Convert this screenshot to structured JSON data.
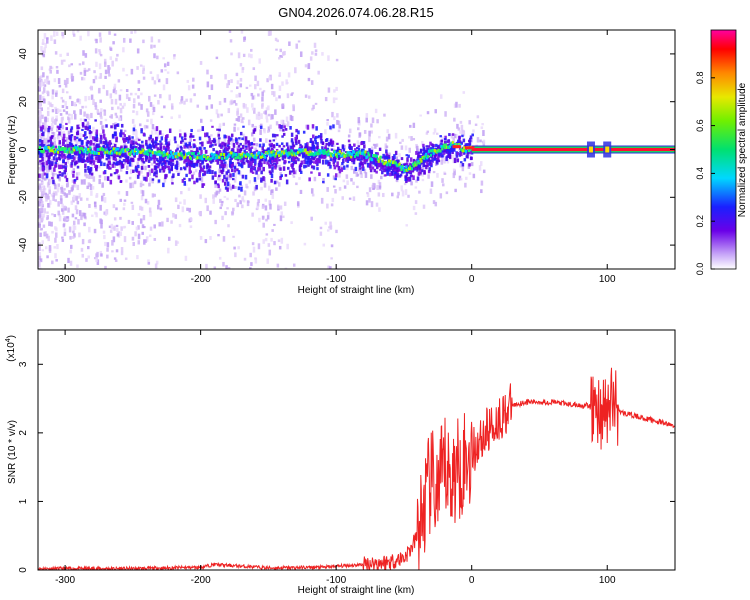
{
  "figure": {
    "title": "GN04.2026.074.06.28.R15"
  },
  "chart_data": [
    {
      "type": "heatmap",
      "xlabel": "Height of straight line (km)",
      "ylabel": "Frequency (Hz)",
      "xlim": [
        -320,
        150
      ],
      "ylim": [
        -50,
        50
      ],
      "xticks": [
        -300,
        -200,
        -100,
        0,
        100
      ],
      "yticks": [
        -40,
        -20,
        0,
        20,
        40
      ],
      "colorbar": {
        "label": "Normalized spectral amplitude",
        "range": [
          0,
          1
        ],
        "ticks": [
          0.0,
          0.2,
          0.4,
          0.6,
          0.8
        ],
        "tick_labels": [
          "0.0",
          "0.2",
          "0.4",
          "0.6",
          "0.8"
        ]
      },
      "ridge": {
        "x": [
          -320,
          -300,
          -250,
          -200,
          -150,
          -120,
          -100,
          -80,
          -70,
          -60,
          -50,
          -45,
          -40,
          -35,
          -30,
          -25,
          -20,
          -15,
          -10,
          -5,
          0,
          20,
          50,
          85,
          100,
          150
        ],
        "freq": [
          0,
          0,
          -1,
          -3,
          -2,
          -1,
          -2,
          -2,
          -4,
          -6,
          -8,
          -7,
          -5,
          -3,
          -1,
          0,
          1,
          2,
          1,
          0,
          1,
          0,
          0,
          0,
          0,
          0
        ]
      },
      "grid": false
    },
    {
      "type": "line",
      "xlabel": "Height of straight line (km)",
      "ylabel": "SNR (10 * v/v)",
      "scale_note": "(x10",
      "scale_exp": "4",
      "xlim": [
        -320,
        150
      ],
      "ylim": [
        0,
        3.5
      ],
      "xticks": [
        -300,
        -200,
        -100,
        0,
        100
      ],
      "yticks": [
        0,
        1,
        2,
        3
      ],
      "color": "#ee2222",
      "series": [
        {
          "x": [
            -320,
            -250,
            -200,
            -190,
            -150,
            -110,
            -80,
            -60,
            -50,
            -45,
            -40,
            -35,
            -30,
            -25,
            -20,
            -15,
            -10,
            -5,
            0,
            10,
            20,
            30,
            40,
            50,
            60,
            70,
            80,
            85,
            90,
            95,
            100,
            105,
            110,
            120,
            130,
            140,
            150
          ],
          "values": [
            0.02,
            0.02,
            0.04,
            0.08,
            0.03,
            0.04,
            0.08,
            0.12,
            0.18,
            0.3,
            0.5,
            0.9,
            1.3,
            1.1,
            1.5,
            1.3,
            1.5,
            1.6,
            1.7,
            2.0,
            2.2,
            2.4,
            2.45,
            2.45,
            2.45,
            2.42,
            2.4,
            2.4,
            2.35,
            2.3,
            2.3,
            2.5,
            2.3,
            2.25,
            2.2,
            2.15,
            2.1
          ]
        }
      ],
      "grid": false
    }
  ]
}
